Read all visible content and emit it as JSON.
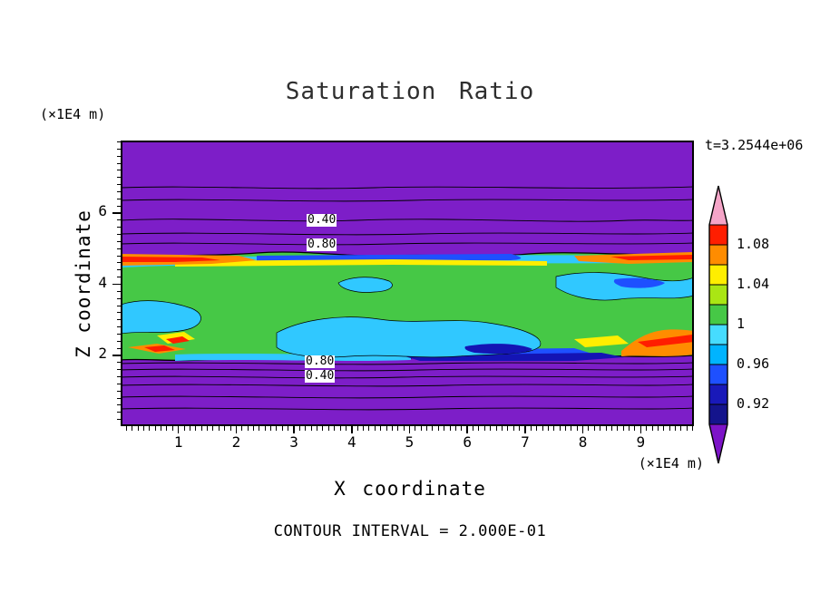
{
  "chart_data": {
    "type": "heatmap",
    "title": "Saturation Ratio",
    "time_annotation": "t=3.2544e+06",
    "xlabel": "X coordinate",
    "ylabel": "Z coordinate",
    "x_unit_label": "(×1E4 m)",
    "y_unit_label": "(×1E4 m)",
    "contour_interval_note": "CONTOUR INTERVAL = 2.000E-01",
    "x_ticks": [
      1,
      2,
      3,
      4,
      5,
      6,
      7,
      8,
      9
    ],
    "y_ticks": [
      2,
      4,
      6
    ],
    "xlim": [
      0,
      10
    ],
    "ylim": [
      0,
      8
    ],
    "contour_line_labels": {
      "upper": [
        "0.40",
        "0.80"
      ],
      "lower": [
        "0.80",
        "0.40"
      ]
    },
    "colorbar": {
      "tick_labels": [
        "1.08",
        "1.04",
        "1",
        "0.96",
        "0.92"
      ],
      "colors_top_to_bottom": [
        "#F5A5C8",
        "#FF1E00",
        "#FF8C00",
        "#FFEE00",
        "#AAE614",
        "#46C846",
        "#46DCFF",
        "#00B4FF",
        "#1E50FF",
        "#1919B9",
        "#14148C",
        "#7D14C8"
      ]
    },
    "fill_colors": {
      "background_low": "#7D1EC8",
      "band_near_one": "#46C846",
      "slightly_below_one": "#30C8FF",
      "well_below_one": "#1414B4",
      "slightly_above_one": "#FFEE00",
      "above_one": "#FF8C00",
      "far_above_one": "#FF1E00"
    },
    "regions_summary": "Saturation ratio ≈1 (green) band spans z≈2–5 (×1E4 m) across all x (0–10 ×1E4 m); cyan/blue sub-saturated patches inside the band; yellow/orange/red super-saturated streaks along the band edges; uniform purple (<0.92) above and below the band with thin line contours labeled 0.40 and 0.80 (contour interval 0.2)."
  }
}
